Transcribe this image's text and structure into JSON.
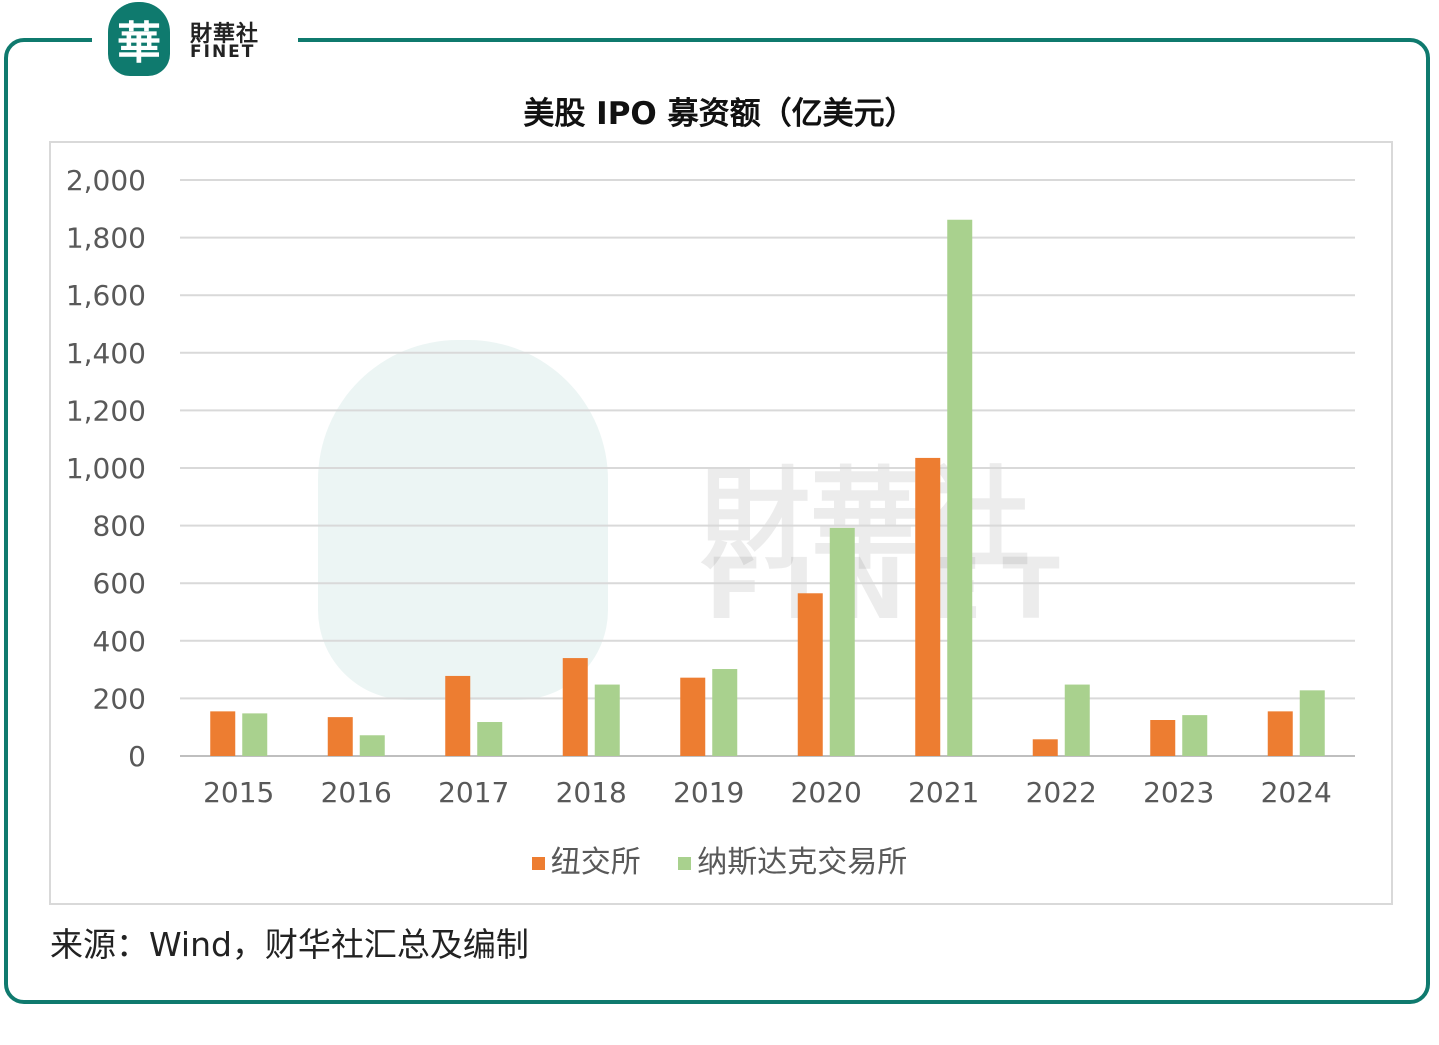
{
  "header": {
    "logo_char": "華",
    "logo_cn": "財華社",
    "logo_en": "FINET"
  },
  "watermark": {
    "char": "華",
    "cn": "財華社",
    "en": "FINET"
  },
  "colors": {
    "frame": "#0f7a6e",
    "nyse": "#ed7d31",
    "nasdaq": "#a9d18e",
    "grid": "#d9d9d9"
  },
  "chart_data": {
    "type": "bar",
    "title": "美股 IPO 募资额（亿美元）",
    "categories": [
      "2015",
      "2016",
      "2017",
      "2018",
      "2019",
      "2020",
      "2021",
      "2022",
      "2023",
      "2024"
    ],
    "series": [
      {
        "name": "纽交所",
        "values": [
          155,
          135,
          278,
          340,
          272,
          565,
          1035,
          58,
          125,
          155
        ]
      },
      {
        "name": "纳斯达克交易所",
        "values": [
          148,
          72,
          118,
          248,
          302,
          792,
          1862,
          248,
          142,
          228
        ]
      }
    ],
    "yticks": [
      "0",
      "200",
      "400",
      "600",
      "800",
      "1,000",
      "1,200",
      "1,400",
      "1,600",
      "1,800",
      "2,000"
    ],
    "ylim": [
      0,
      2000
    ],
    "grid": true,
    "legend_position": "bottom"
  },
  "source": "来源：Wind，财华社汇总及编制"
}
